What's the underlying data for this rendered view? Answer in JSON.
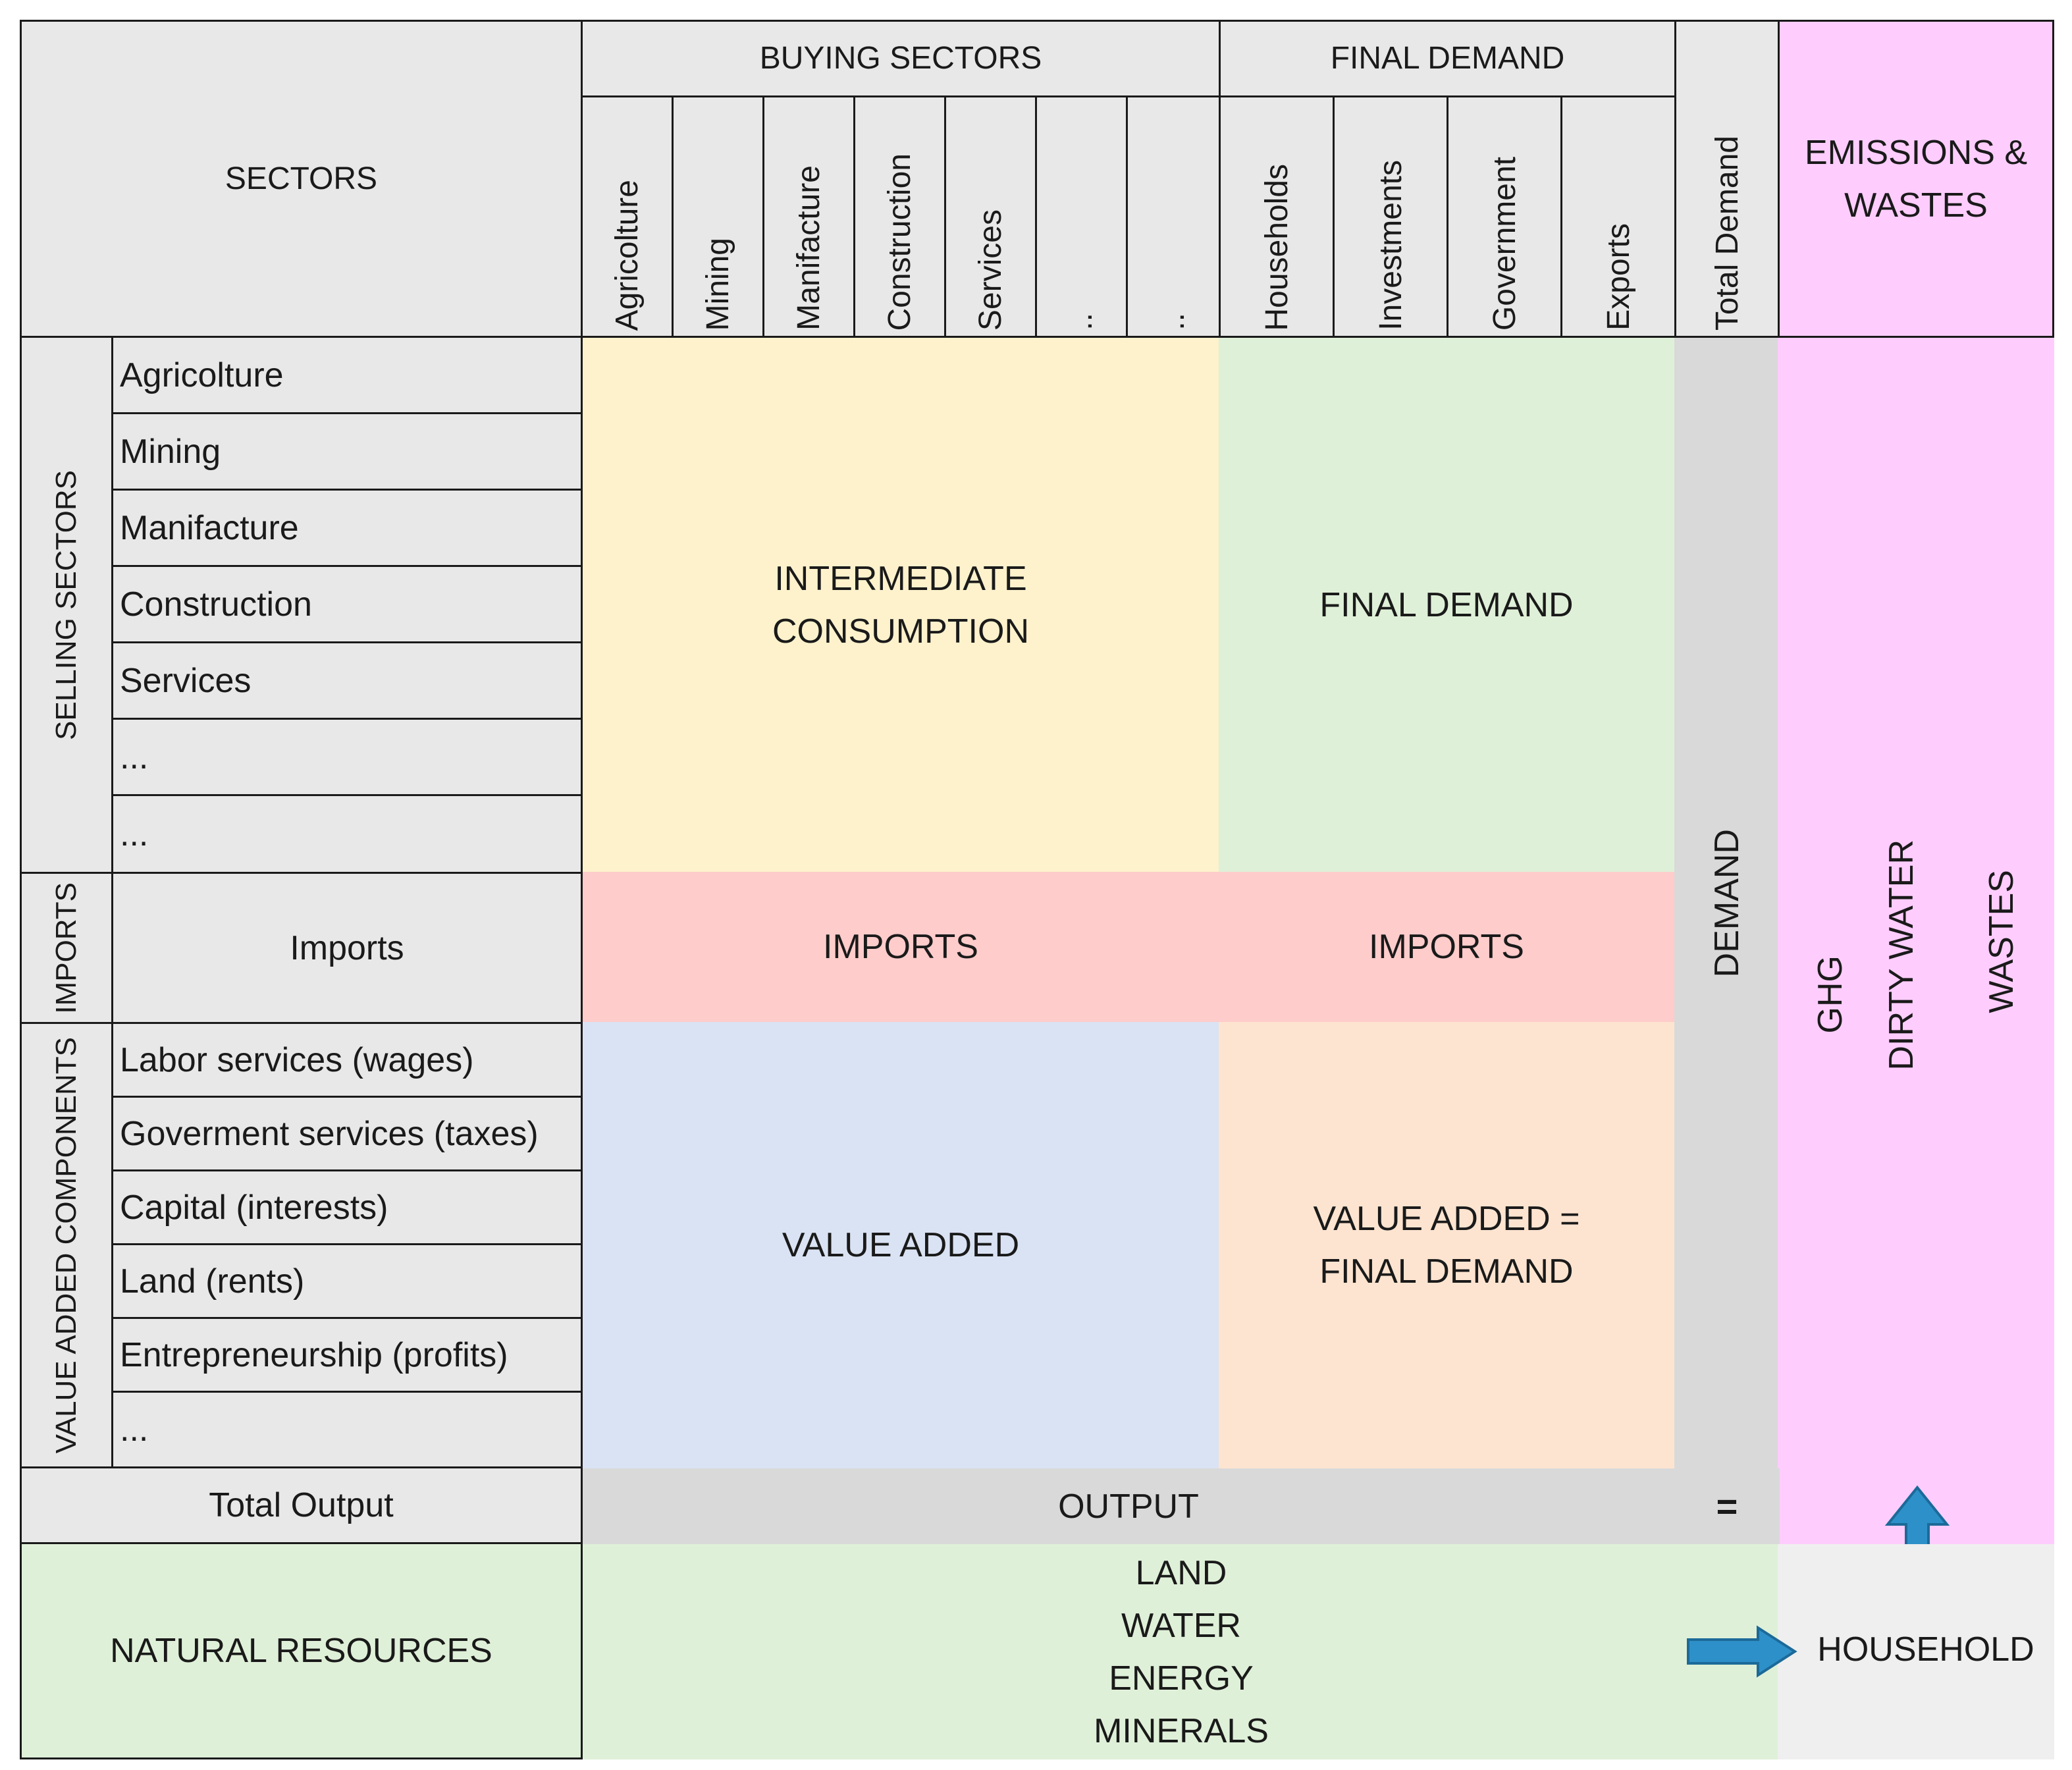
{
  "header": {
    "sectors": "SECTORS",
    "buying_sectors": "BUYING SECTORS",
    "final_demand": "FINAL DEMAND",
    "total_demand": "Total Demand",
    "emissions_wastes": [
      "EMISSIONS &",
      "WASTES"
    ]
  },
  "buying_columns": [
    "Agricolture",
    "Mining",
    "Manifacture",
    "Construction",
    "Services",
    "..",
    ".."
  ],
  "final_demand_columns": [
    "Households",
    "Investments",
    "Government",
    "Exports"
  ],
  "groups": {
    "selling_sectors": "SELLING SECTORS",
    "imports": "IMPORTS",
    "value_added_components": "VALUE ADDED COMPONENTS"
  },
  "selling_rows": [
    "Agricolture",
    "Mining",
    "Manifacture",
    "Construction",
    "Services",
    "...",
    "..."
  ],
  "imports_row": "Imports",
  "value_added_rows": [
    "Labor services (wages)",
    "Goverment services (taxes)",
    "Capital (interests)",
    "Land (rents)",
    "Entrepreneurship (profits)",
    "..."
  ],
  "blocks": {
    "intermediate_consumption": [
      "INTERMEDIATE",
      "CONSUMPTION"
    ],
    "final_demand": "FINAL DEMAND",
    "imports_left": "IMPORTS",
    "imports_right": "IMPORTS",
    "value_added": "VALUE ADDED",
    "value_added_final": [
      "VALUE ADDED =",
      "FINAL DEMAND"
    ],
    "demand": "DEMAND",
    "emissions_items": [
      "GHG",
      "DIRTY WATER",
      "WASTES"
    ]
  },
  "output_row": {
    "label": "Total Output",
    "output": "OUTPUT",
    "equals": "="
  },
  "natural_resources": {
    "label": "NATURAL RESOURCES",
    "items": [
      "LAND",
      "WATER",
      "ENERGY",
      "MINERALS"
    ],
    "household": "HOUSEHOLD"
  },
  "colors": {
    "header_grey": "#e8e8e8",
    "intermediate": "#fdf2cc",
    "final_demand": "#dff0d8",
    "imports": "#fecccb",
    "value_added": "#dae3f3",
    "value_added_final": "#fde4d0",
    "demand": "#d9d9d9",
    "emissions": "#fecdfd",
    "arrow": "#2e90c8"
  }
}
